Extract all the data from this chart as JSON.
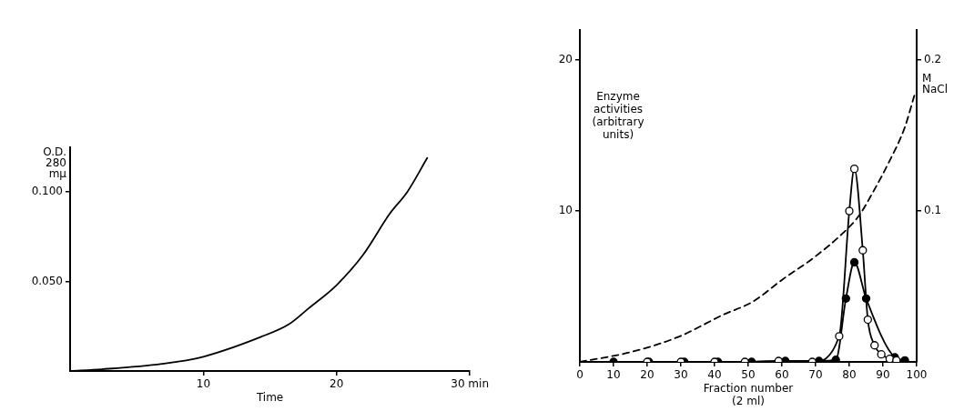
{
  "chart_data": [
    {
      "type": "line",
      "xlabel": "Time",
      "ylabel": "O.D. 280 mμ",
      "xlim": [
        0,
        30
      ],
      "ylim": [
        0,
        0.125
      ],
      "xticks": [
        10,
        20,
        {
          "value": 30,
          "label": "30 min"
        }
      ],
      "yticks": [
        {
          "value": 0.05,
          "label": "0.050"
        },
        {
          "value": 0.1,
          "label": "0.100"
        }
      ],
      "grid": false,
      "legend": false,
      "marker": "none",
      "line_style": "solid",
      "x": [
        0,
        2.4,
        6.9,
        10,
        14.3,
        16.4,
        17.9,
        20,
        22,
        24,
        25.3,
        26.8
      ],
      "series": [
        {
          "color": "#000000",
          "values": [
            0,
            0.001,
            0.004,
            0.008,
            0.019,
            0.026,
            0.035,
            0.048,
            0.065,
            0.088,
            0.1,
            0.119
          ]
        }
      ]
    },
    {
      "type": "line",
      "xlabel": "Fraction number (2 ml)",
      "ylabel": "Enzyme activities (arbitrary units)",
      "y2label": "M NaCl",
      "xlim": [
        0,
        100
      ],
      "ylim": [
        0,
        22
      ],
      "y2lim": [
        0,
        0.22
      ],
      "xticks": [
        0,
        10,
        20,
        30,
        40,
        50,
        60,
        70,
        80,
        90,
        100
      ],
      "yticks": [
        10,
        20
      ],
      "y2ticks": [
        0.1,
        0.2
      ],
      "grid": false,
      "legend": false,
      "marker": "circle",
      "line_style": "solid",
      "series": [
        {
          "color": "#ffffff",
          "x": [
            20,
            30,
            40,
            49,
            59,
            69,
            77,
            80,
            81.5,
            84,
            85.5,
            87.5,
            89.5,
            92,
            94
          ],
          "values": [
            0,
            0,
            0,
            0,
            0.06,
            0,
            1.7,
            10,
            12.8,
            7.4,
            2.8,
            1.1,
            0.5,
            0.2,
            0.1
          ]
        },
        {
          "color": "#000000",
          "x": [
            10,
            20.5,
            31,
            41,
            51,
            61,
            71,
            76,
            79,
            81.5,
            85,
            93.5,
            96.5
          ],
          "values": [
            0,
            0,
            0,
            0,
            0,
            0.06,
            0.06,
            0.14,
            4.2,
            6.6,
            4.2,
            0.3,
            0.1
          ]
        },
        {
          "color": "#000000",
          "axis": "y2",
          "marker": "none",
          "line_style": "dashed",
          "x": [
            0,
            15.3,
            29.7,
            42.3,
            51.4,
            60.4,
            69.4,
            78.4,
            82.9,
            87.4,
            91.9,
            96.4,
            99.5
          ],
          "values": [
            0,
            0.0066,
            0.017,
            0.031,
            0.04,
            0.055,
            0.069,
            0.086,
            0.097,
            0.114,
            0.133,
            0.155,
            0.178
          ]
        }
      ]
    }
  ]
}
